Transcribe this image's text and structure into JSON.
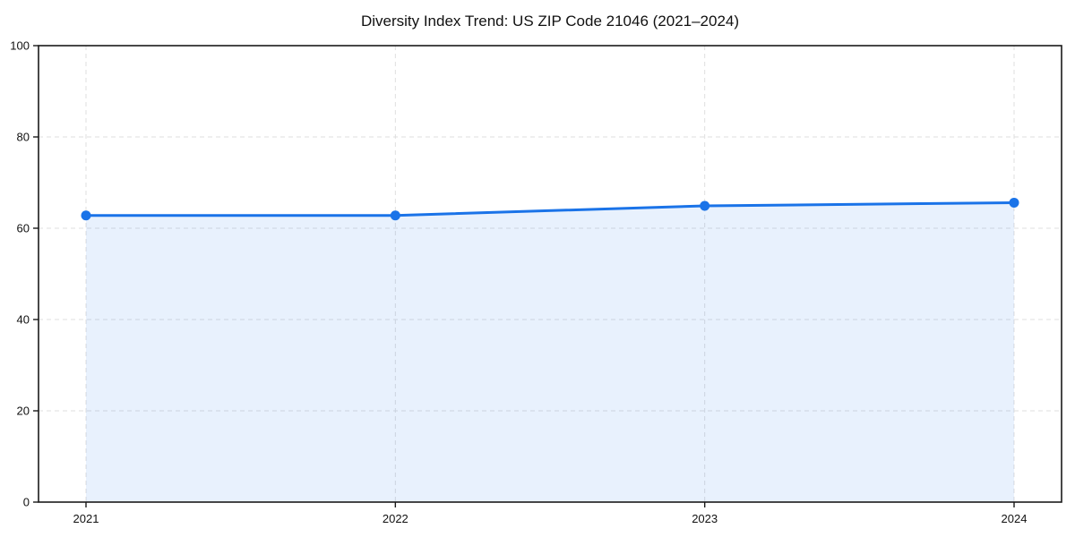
{
  "chart_data": {
    "type": "area",
    "title": "Diversity Index Trend: US ZIP Code 21046 (2021–2024)",
    "categories": [
      "2021",
      "2022",
      "2023",
      "2024"
    ],
    "series": [
      {
        "name": "Diversity Index",
        "values": [
          62.8,
          62.8,
          64.9,
          65.6
        ]
      }
    ],
    "xlabel": "",
    "ylabel": "",
    "ylim": [
      0,
      100
    ],
    "yticks": [
      0,
      20,
      40,
      60,
      80,
      100
    ],
    "grid": true,
    "legend": "none",
    "line_color": "#1a73e8",
    "marker_color": "#1a73e8",
    "fill_color": "rgba(26,115,232,0.10)",
    "axis_color": "#1a1a1a",
    "grid_color": "#dfdfdf",
    "background_color": "#ffffff"
  }
}
